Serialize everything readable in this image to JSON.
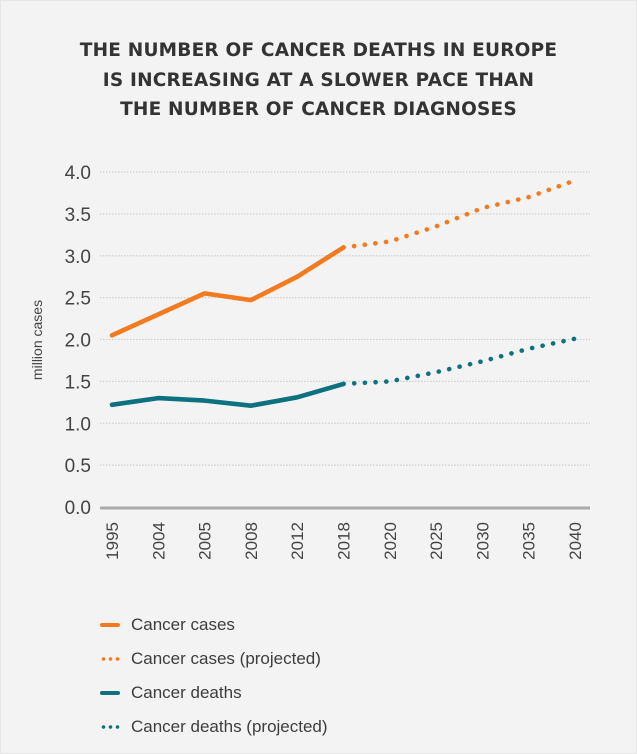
{
  "chart_data": {
    "type": "line",
    "title": [
      "THE NUMBER OF CANCER DEATHS IN EUROPE",
      "IS INCREASING AT A SLOWER PACE THAN",
      "THE NUMBER OF CANCER DIAGNOSES"
    ],
    "xlabel": "",
    "ylabel": "million cases",
    "ylim": [
      0,
      4.0
    ],
    "yticks": [
      "0.0",
      "0.5",
      "1.0",
      "1.5",
      "2.0",
      "2.5",
      "3.0",
      "3.5",
      "4.0"
    ],
    "ytick_values": [
      0,
      0.5,
      1.0,
      1.5,
      2.0,
      2.5,
      3.0,
      3.5,
      4.0
    ],
    "categories": [
      "1995",
      "2004",
      "2005",
      "2008",
      "2012",
      "2018",
      "2020",
      "2025",
      "2030",
      "2035",
      "2040"
    ],
    "grid": "horizontal-dotted",
    "legend_position": "bottom-left",
    "series": [
      {
        "name": "Cancer cases",
        "style": "solid",
        "color": "#f47a20",
        "values": [
          2.05,
          2.3,
          2.55,
          2.47,
          2.75,
          3.1,
          null,
          null,
          null,
          null,
          null
        ]
      },
      {
        "name": "Cancer cases (projected)",
        "style": "dotted",
        "color": "#f47a20",
        "values": [
          null,
          null,
          null,
          null,
          null,
          3.1,
          3.17,
          3.35,
          3.57,
          3.7,
          3.9
        ]
      },
      {
        "name": "Cancer deaths",
        "style": "solid",
        "color": "#0e7180",
        "values": [
          1.22,
          1.3,
          1.27,
          1.21,
          1.31,
          1.47,
          null,
          null,
          null,
          null,
          null
        ]
      },
      {
        "name": "Cancer deaths (projected)",
        "style": "dotted",
        "color": "#0e7180",
        "values": [
          null,
          null,
          null,
          null,
          null,
          1.47,
          1.5,
          1.61,
          1.74,
          1.89,
          2.01
        ]
      }
    ]
  }
}
